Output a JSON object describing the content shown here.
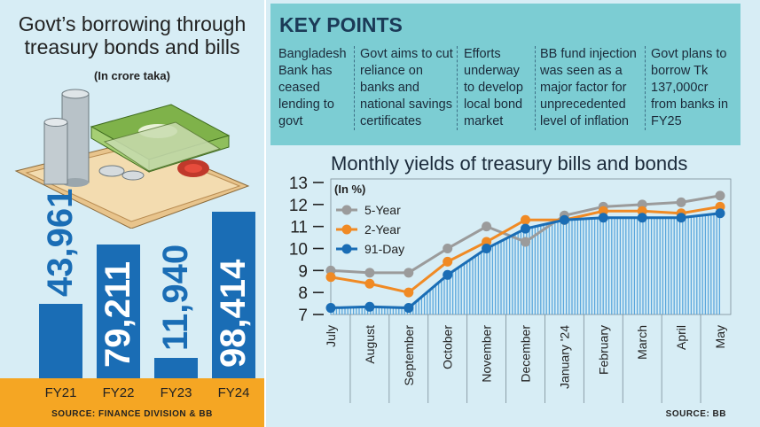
{
  "left": {
    "title_line1": "Govt’s borrowing through",
    "title_line2": "treasury bonds and bills",
    "subtitle": "(In crore taka)",
    "source": "SOURCE: FINANCE DIVISION & BB"
  },
  "key_points": {
    "title": "KEY POINTS",
    "items": [
      "Bangladesh Bank has ceased lending to govt",
      "Govt aims to cut reliance on banks and national savings certificates",
      "Efforts underway to develop local bond market",
      "BB fund injection was seen as a major factor for unprecedented level of inflation",
      "Govt plans to borrow Tk 137,000cr from banks in FY25"
    ]
  },
  "right": {
    "title": "Monthly yields of treasury bills and bonds",
    "unit": "(In %)",
    "source": "SOURCE: BB"
  },
  "colors": {
    "bar": "#1a6db5",
    "band": "#f5a623",
    "five_year": "#9b9b9b",
    "two_year": "#f08a24",
    "ninety_one_day": "#1a6db5"
  },
  "chart_data": [
    {
      "type": "bar",
      "title": "Govt’s borrowing through treasury bonds and bills",
      "ylabel": "In crore taka",
      "categories": [
        "FY21",
        "FY22",
        "FY23",
        "FY24"
      ],
      "values": [
        43961,
        79211,
        11940,
        98414
      ],
      "labels": [
        "43,961",
        "79,211",
        "11,940",
        "98,414"
      ]
    },
    {
      "type": "line",
      "title": "Monthly yields of treasury bills and bonds",
      "ylabel": "In %",
      "ylim": [
        7,
        13
      ],
      "yticks": [
        7,
        8,
        9,
        10,
        11,
        12,
        13
      ],
      "categories": [
        "July",
        "August",
        "September",
        "October",
        "November",
        "December",
        "January '24",
        "February",
        "March",
        "April",
        "May"
      ],
      "series": [
        {
          "name": "5-Year",
          "values": [
            9.0,
            8.9,
            8.9,
            10.0,
            11.0,
            10.3,
            11.5,
            11.9,
            12.0,
            12.1,
            12.4
          ]
        },
        {
          "name": "2-Year",
          "values": [
            8.7,
            8.4,
            8.0,
            9.4,
            10.3,
            11.3,
            11.3,
            11.7,
            11.7,
            11.6,
            11.9
          ]
        },
        {
          "name": "91-Day",
          "values": [
            7.3,
            7.35,
            7.3,
            8.8,
            10.0,
            10.9,
            11.3,
            11.4,
            11.4,
            11.4,
            11.6
          ]
        }
      ]
    }
  ]
}
